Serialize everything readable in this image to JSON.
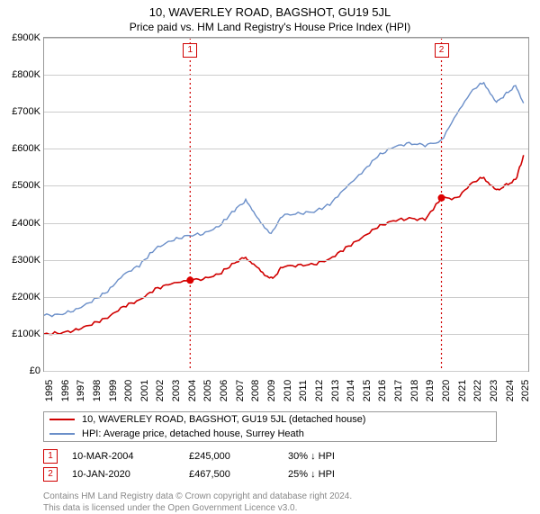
{
  "title": "10, WAVERLEY ROAD, BAGSHOT, GU19 5JL",
  "subtitle": "Price paid vs. HM Land Registry's House Price Index (HPI)",
  "chart": {
    "type": "line",
    "background_color": "#ffffff",
    "grid_color": "#cccccc",
    "border_color": "#999999",
    "x_years": [
      1995,
      1996,
      1997,
      1998,
      1999,
      2000,
      2001,
      2002,
      2003,
      2004,
      2005,
      2006,
      2007,
      2008,
      2009,
      2010,
      2011,
      2012,
      2013,
      2014,
      2015,
      2016,
      2017,
      2018,
      2019,
      2020,
      2021,
      2022,
      2023,
      2024,
      2025
    ],
    "xlim": [
      1995,
      2025.5
    ],
    "ylim": [
      0,
      900000
    ],
    "ytick_step": 100000,
    "ytick_labels": [
      "£0",
      "£100K",
      "£200K",
      "£300K",
      "£400K",
      "£500K",
      "£600K",
      "£700K",
      "£800K",
      "£900K"
    ],
    "label_fontsize": 11,
    "series": [
      {
        "name": "HPI: Average price, detached house, Surrey Heath",
        "color": "#6b8fc9",
        "line_width": 1.4,
        "points": [
          [
            1995,
            150000
          ],
          [
            1996,
            152000
          ],
          [
            1997,
            165000
          ],
          [
            1998,
            188000
          ],
          [
            1999,
            215000
          ],
          [
            2000,
            260000
          ],
          [
            2001,
            285000
          ],
          [
            2002,
            330000
          ],
          [
            2003,
            352000
          ],
          [
            2004,
            365000
          ],
          [
            2005,
            370000
          ],
          [
            2006,
            390000
          ],
          [
            2007,
            435000
          ],
          [
            2007.7,
            460000
          ],
          [
            2008.3,
            420000
          ],
          [
            2009,
            385000
          ],
          [
            2009.3,
            370000
          ],
          [
            2010,
            420000
          ],
          [
            2011,
            425000
          ],
          [
            2012,
            430000
          ],
          [
            2013,
            450000
          ],
          [
            2014,
            495000
          ],
          [
            2015,
            535000
          ],
          [
            2016,
            580000
          ],
          [
            2017,
            605000
          ],
          [
            2018,
            615000
          ],
          [
            2019,
            610000
          ],
          [
            2020,
            620000
          ],
          [
            2021,
            695000
          ],
          [
            2022,
            760000
          ],
          [
            2022.7,
            780000
          ],
          [
            2023.5,
            725000
          ],
          [
            2024,
            745000
          ],
          [
            2024.7,
            770000
          ],
          [
            2025.2,
            720000
          ]
        ]
      },
      {
        "name": "10, WAVERLEY ROAD, BAGSHOT, GU19 5JL (detached house)",
        "color": "#d00000",
        "line_width": 1.6,
        "points": [
          [
            1995,
            100000
          ],
          [
            1996,
            102000
          ],
          [
            1997,
            110000
          ],
          [
            1998,
            126000
          ],
          [
            1999,
            144000
          ],
          [
            2000,
            174000
          ],
          [
            2001,
            191000
          ],
          [
            2002,
            221000
          ],
          [
            2003,
            236000
          ],
          [
            2004.2,
            245000
          ],
          [
            2005,
            248000
          ],
          [
            2006,
            261000
          ],
          [
            2007,
            292000
          ],
          [
            2007.7,
            308000
          ],
          [
            2008.3,
            282000
          ],
          [
            2009,
            258000
          ],
          [
            2009.4,
            248000
          ],
          [
            2010,
            282000
          ],
          [
            2011,
            285000
          ],
          [
            2012,
            288000
          ],
          [
            2013,
            302000
          ],
          [
            2014,
            332000
          ],
          [
            2015,
            359000
          ],
          [
            2016,
            389000
          ],
          [
            2017,
            406000
          ],
          [
            2018,
            412000
          ],
          [
            2019,
            409000
          ],
          [
            2020.03,
            467500
          ],
          [
            2021,
            466000
          ],
          [
            2022,
            510000
          ],
          [
            2022.7,
            523000
          ],
          [
            2023.5,
            486000
          ],
          [
            2024,
            500000
          ],
          [
            2024.7,
            516000
          ],
          [
            2025.2,
            580000
          ]
        ]
      }
    ],
    "sale_markers": [
      {
        "n": 1,
        "x": 2004.2,
        "y": 245000,
        "color": "#d00000"
      },
      {
        "n": 2,
        "x": 2020.03,
        "y": 467500,
        "color": "#d00000"
      }
    ]
  },
  "legend": [
    {
      "color": "#d00000",
      "label": "10, WAVERLEY ROAD, BAGSHOT, GU19 5JL (detached house)"
    },
    {
      "color": "#6b8fc9",
      "label": "HPI: Average price, detached house, Surrey Heath"
    }
  ],
  "sales": [
    {
      "n": "1",
      "color": "#d00000",
      "date": "10-MAR-2004",
      "price": "£245,000",
      "pct": "30% ↓ HPI"
    },
    {
      "n": "2",
      "color": "#d00000",
      "date": "10-JAN-2020",
      "price": "£467,500",
      "pct": "25% ↓ HPI"
    }
  ],
  "footer1": "Contains HM Land Registry data © Crown copyright and database right 2024.",
  "footer2": "This data is licensed under the Open Government Licence v3.0."
}
